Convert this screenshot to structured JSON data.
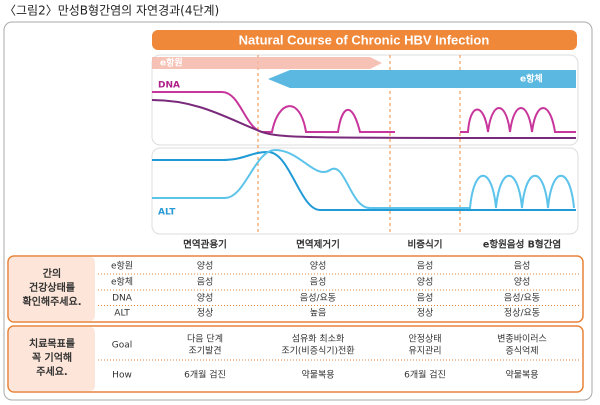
{
  "caption": "〈그림2〉만성B형간염의 자연경과(4단계)",
  "banner_title": "Natural Course of Chronic HBV Infection",
  "curve_labels": {
    "e_antigen": "e항원",
    "e_antibody": "e항체",
    "dna": "DNA",
    "alt": "ALT"
  },
  "phases": [
    "면역관용기",
    "면역제거기",
    "비증식기",
    "e항원음성 B형간염"
  ],
  "status": {
    "label": [
      "간의",
      "건강상태를",
      "확인해주세요."
    ],
    "rows": [
      {
        "name": "e항원",
        "cells": [
          "양성",
          "양성",
          "음성",
          "음성"
        ]
      },
      {
        "name": "e항체",
        "cells": [
          "음성",
          "음성",
          "양성",
          "양성"
        ]
      },
      {
        "name": "DNA",
        "cells": [
          "양성",
          "음성/요동",
          "음성",
          "음성/요동"
        ]
      },
      {
        "name": "ALT",
        "cells": [
          "정상",
          "높음",
          "정상",
          "정상/요동"
        ]
      }
    ]
  },
  "goals": {
    "label": [
      "치료목표를",
      "꼭 기억해",
      "주세요."
    ],
    "rows": [
      {
        "name": "Goal",
        "cells": [
          [
            "다음 단계",
            "조기발견"
          ],
          [
            "섬유화 최소화",
            "조기(비증식기)전환"
          ],
          [
            "안정상태",
            "유지관리"
          ],
          [
            "변종바이러스",
            "증식억제"
          ]
        ]
      },
      {
        "name": "How",
        "cells": [
          [
            "6개월 검진"
          ],
          [
            "약물복용"
          ],
          [
            "6개월 검진"
          ],
          [
            "약물복용"
          ]
        ]
      }
    ]
  }
}
